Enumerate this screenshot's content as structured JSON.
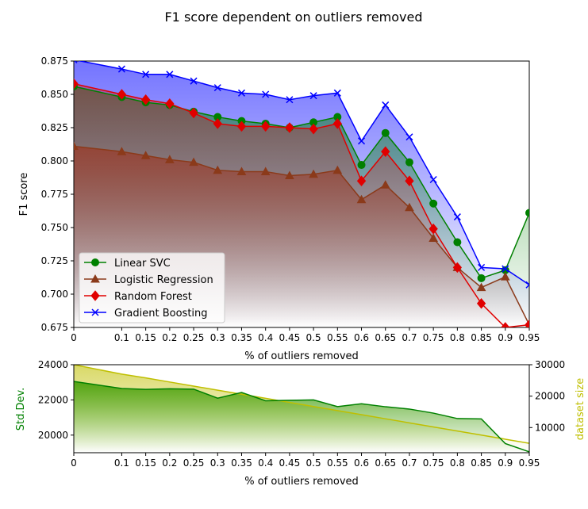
{
  "chart_data": [
    {
      "type": "line",
      "title": "F1 score dependent on outliers removed",
      "xlabel": "% of outliers removed",
      "ylabel": "F1 score",
      "xlim": [
        0,
        0.95
      ],
      "ylim": [
        0.675,
        0.875
      ],
      "x": [
        0,
        0.1,
        0.15,
        0.2,
        0.25,
        0.3,
        0.35,
        0.4,
        0.45,
        0.5,
        0.55,
        0.6,
        0.65,
        0.7,
        0.75,
        0.8,
        0.85,
        0.9,
        0.95
      ],
      "x_tick_labels": [
        "0",
        "0.1",
        "0.15",
        "0.2",
        "0.25",
        "0.3",
        "0.35",
        "0.4",
        "0.45",
        "0.5",
        "0.55",
        "0.6",
        "0.65",
        "0.7",
        "0.75",
        "0.8",
        "0.85",
        "0.9",
        "0.95"
      ],
      "y_ticks": [
        "0.675",
        "0.700",
        "0.725",
        "0.750",
        "0.775",
        "0.800",
        "0.825",
        "0.850",
        "0.875"
      ],
      "legend_position": "lower-left",
      "series": [
        {
          "name": "Linear SVC",
          "color": "#008000",
          "marker": "circle",
          "values": [
            0.856,
            0.848,
            0.844,
            0.842,
            0.837,
            0.833,
            0.83,
            0.828,
            0.825,
            0.829,
            0.833,
            0.797,
            0.821,
            0.799,
            0.768,
            0.739,
            0.712,
            0.718,
            0.761
          ]
        },
        {
          "name": "Logistic Regression",
          "color": "#8b3a1a",
          "marker": "triangle",
          "values": [
            0.811,
            0.807,
            0.804,
            0.801,
            0.799,
            0.793,
            0.792,
            0.792,
            0.789,
            0.79,
            0.793,
            0.771,
            0.782,
            0.765,
            0.742,
            0.72,
            0.705,
            0.713,
            0.677
          ]
        },
        {
          "name": "Random Forest",
          "color": "#e00000",
          "marker": "diamond",
          "values": [
            0.858,
            0.85,
            0.846,
            0.843,
            0.836,
            0.828,
            0.826,
            0.826,
            0.825,
            0.824,
            0.828,
            0.785,
            0.807,
            0.785,
            0.749,
            0.72,
            0.693,
            0.675,
            0.677
          ]
        },
        {
          "name": "Gradient Boosting",
          "color": "#0000ff",
          "marker": "x",
          "values": [
            0.876,
            0.869,
            0.865,
            0.865,
            0.86,
            0.855,
            0.851,
            0.85,
            0.846,
            0.849,
            0.851,
            0.815,
            0.842,
            0.818,
            0.786,
            0.758,
            0.72,
            0.719,
            0.707
          ]
        }
      ]
    },
    {
      "type": "area",
      "xlabel": "% of outliers removed",
      "ylabel": "Std.Dev.",
      "ylabel_right": "dataset size",
      "xlim": [
        0,
        0.95
      ],
      "ylim": [
        19000,
        24000
      ],
      "ylim_right": [
        2000,
        30000
      ],
      "x": [
        0,
        0.1,
        0.15,
        0.2,
        0.25,
        0.3,
        0.35,
        0.4,
        0.45,
        0.5,
        0.55,
        0.6,
        0.65,
        0.7,
        0.75,
        0.8,
        0.85,
        0.9,
        0.95
      ],
      "x_tick_labels": [
        "0",
        "0.1",
        "0.15",
        "0.2",
        "0.25",
        "0.3",
        "0.35",
        "0.4",
        "0.45",
        "0.5",
        "0.55",
        "0.6",
        "0.65",
        "0.7",
        "0.75",
        "0.8",
        "0.85",
        "0.9",
        "0.95"
      ],
      "y_ticks": [
        "20000",
        "22000",
        "24000"
      ],
      "y_ticks_right": [
        "10000",
        "20000",
        "30000"
      ],
      "series": [
        {
          "axis": "left",
          "color": "#008000",
          "values": [
            23050,
            22650,
            22600,
            22630,
            22610,
            22100,
            22420,
            21950,
            21980,
            22000,
            21620,
            21780,
            21610,
            21480,
            21250,
            20940,
            20920,
            19520,
            19050
          ]
        },
        {
          "axis": "right",
          "color": "#bfbf00",
          "values": [
            30000,
            27000,
            25800,
            24500,
            23200,
            21900,
            20600,
            19300,
            18000,
            16700,
            15400,
            14100,
            12800,
            11500,
            10200,
            8900,
            7600,
            6300,
            5000
          ]
        }
      ]
    }
  ]
}
